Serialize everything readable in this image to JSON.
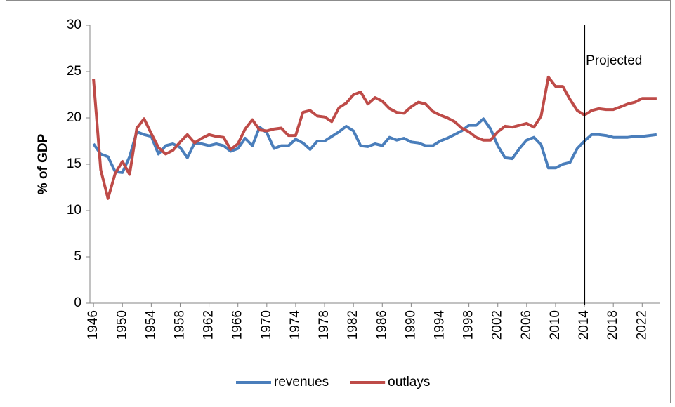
{
  "chart_data": {
    "type": "line",
    "y_label": "% of GDP",
    "categories": [
      "1946",
      null,
      null,
      null,
      "1950",
      null,
      null,
      null,
      "1954",
      null,
      null,
      null,
      "1958",
      null,
      null,
      null,
      "1962",
      null,
      null,
      null,
      "1966",
      null,
      null,
      null,
      "1970",
      null,
      null,
      null,
      "1974",
      null,
      null,
      null,
      "1978",
      null,
      null,
      null,
      "1982",
      null,
      null,
      null,
      "1986",
      null,
      null,
      null,
      "1990",
      null,
      null,
      null,
      "1994",
      null,
      null,
      null,
      "1998",
      null,
      null,
      null,
      "2002",
      null,
      null,
      null,
      "2006",
      null,
      null,
      null,
      "2010",
      null,
      null,
      null,
      "2014",
      null,
      null,
      null,
      "2018",
      null,
      null,
      null,
      "2022",
      null,
      null
    ],
    "series": [
      {
        "name": "revenues",
        "color": "#4a7ebb",
        "values": [
          17.2,
          16.1,
          15.8,
          14.2,
          14.1,
          15.8,
          18.5,
          18.2,
          18.0,
          16.1,
          17.0,
          17.2,
          16.8,
          15.7,
          17.3,
          17.2,
          17.0,
          17.2,
          17.0,
          16.4,
          16.7,
          17.8,
          17.0,
          19.0,
          18.4,
          16.7,
          17.0,
          17.0,
          17.7,
          17.3,
          16.6,
          17.5,
          17.5,
          18.0,
          18.5,
          19.1,
          18.6,
          17.0,
          16.9,
          17.2,
          17.0,
          17.9,
          17.6,
          17.8,
          17.4,
          17.3,
          17.0,
          17.0,
          17.5,
          17.8,
          18.2,
          18.6,
          19.2,
          19.2,
          19.9,
          18.8,
          17.0,
          15.7,
          15.6,
          16.7,
          17.6,
          17.9,
          17.1,
          14.6,
          14.6,
          15.0,
          15.2,
          16.7,
          17.5,
          18.2,
          18.2,
          18.1,
          17.9,
          17.9,
          17.9,
          18.0,
          18.0,
          18.1,
          18.2
        ]
      },
      {
        "name": "outlays",
        "color": "#be4b48",
        "values": [
          24.2,
          14.4,
          11.3,
          14.0,
          15.3,
          13.9,
          18.9,
          19.9,
          18.3,
          16.8,
          16.1,
          16.5,
          17.4,
          18.2,
          17.3,
          17.8,
          18.2,
          18.0,
          17.9,
          16.6,
          17.2,
          18.8,
          19.8,
          18.7,
          18.6,
          18.8,
          18.9,
          18.1,
          18.1,
          20.6,
          20.8,
          20.2,
          20.1,
          19.6,
          21.1,
          21.6,
          22.5,
          22.8,
          21.5,
          22.2,
          21.8,
          21.0,
          20.6,
          20.5,
          21.2,
          21.7,
          21.5,
          20.7,
          20.3,
          20.0,
          19.6,
          18.9,
          18.5,
          17.9,
          17.6,
          17.6,
          18.5,
          19.1,
          19.0,
          19.2,
          19.4,
          19.0,
          20.2,
          24.4,
          23.4,
          23.4,
          22.0,
          20.8,
          20.3,
          20.8,
          21.0,
          20.9,
          20.9,
          21.2,
          21.5,
          21.7,
          22.1,
          22.1,
          22.1
        ]
      }
    ],
    "annotation": {
      "text": "Projected",
      "at": "2014"
    },
    "ylim": [
      0,
      30
    ],
    "yticks": [
      0,
      5,
      10,
      15,
      20,
      25,
      30
    ],
    "grid": false,
    "legend": "bottom"
  }
}
